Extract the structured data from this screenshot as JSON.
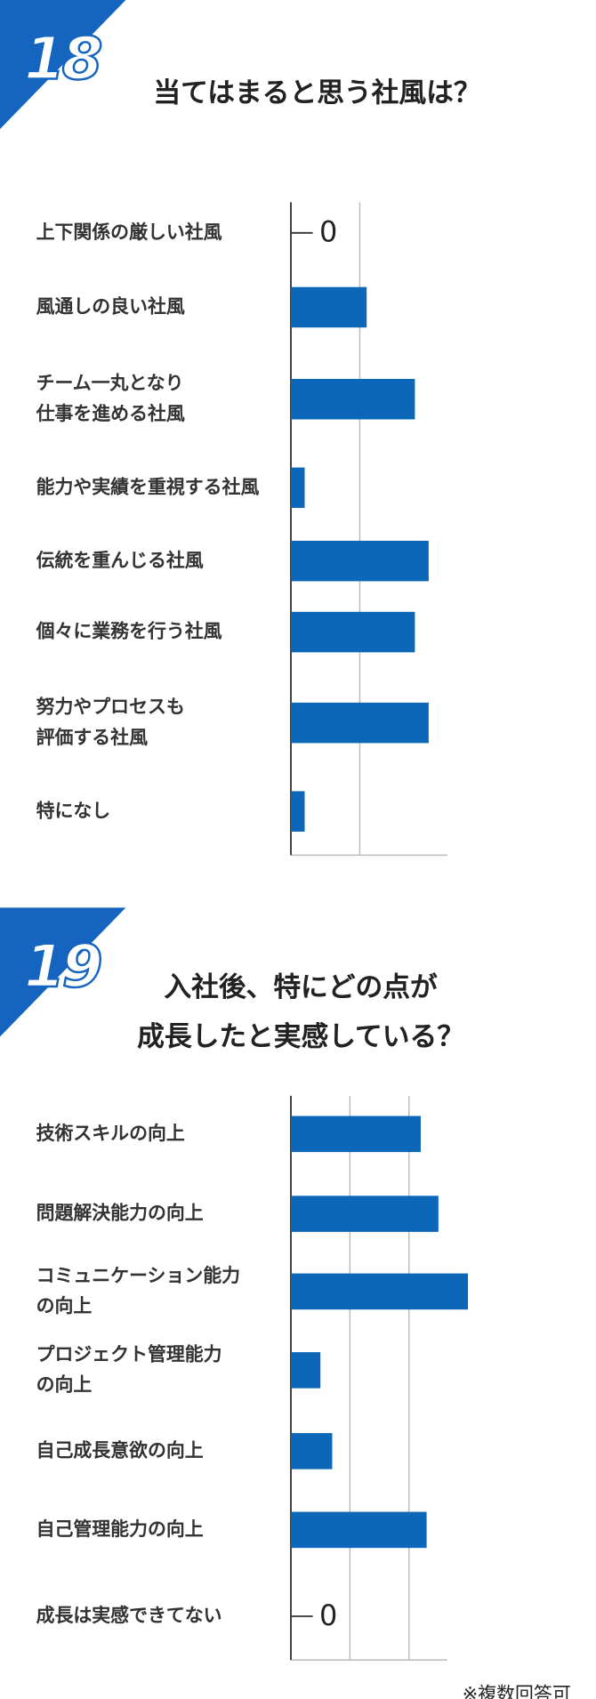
{
  "chart_data": [
    {
      "type": "bar",
      "orientation": "horizontal",
      "number": "18",
      "title": "当てはまると思う社風は？",
      "categories": [
        "上下関係の厳しい社風",
        "風通しの良い社風",
        "チーム一丸となり\n仕事を進める社風",
        "能力や実績を重視する社風",
        "伝統を重んじる社風",
        "個々に業務を行う社風",
        "努力やプロセスも\n評価する社風",
        "特になし"
      ],
      "values": [
        0,
        5.5,
        9,
        1,
        10,
        9,
        10,
        1
      ],
      "color": "#0d67b8",
      "xlim": [
        0,
        11.35
      ],
      "xticks": [
        0,
        5
      ],
      "grid": true
    },
    {
      "type": "bar",
      "orientation": "horizontal",
      "number": "19",
      "title": "入社後、特にどの点が\n成長したと実感している？",
      "categories": [
        "技術スキルの向上",
        "問題解決能力の向上",
        "コミュニケーション能力\nの向上",
        "プロジェクト管理能力\nの向上",
        "自己成長意欲の向上",
        "自己管理能力の向上",
        "成長は実感できてない"
      ],
      "values": [
        11,
        12.5,
        15,
        2.5,
        3.5,
        11.5,
        0
      ],
      "color": "#0d67b8",
      "xlim": [
        0,
        13.25
      ],
      "xticks": [
        0,
        5,
        10
      ],
      "grid": true
    }
  ],
  "footnote": "※複数回答可"
}
